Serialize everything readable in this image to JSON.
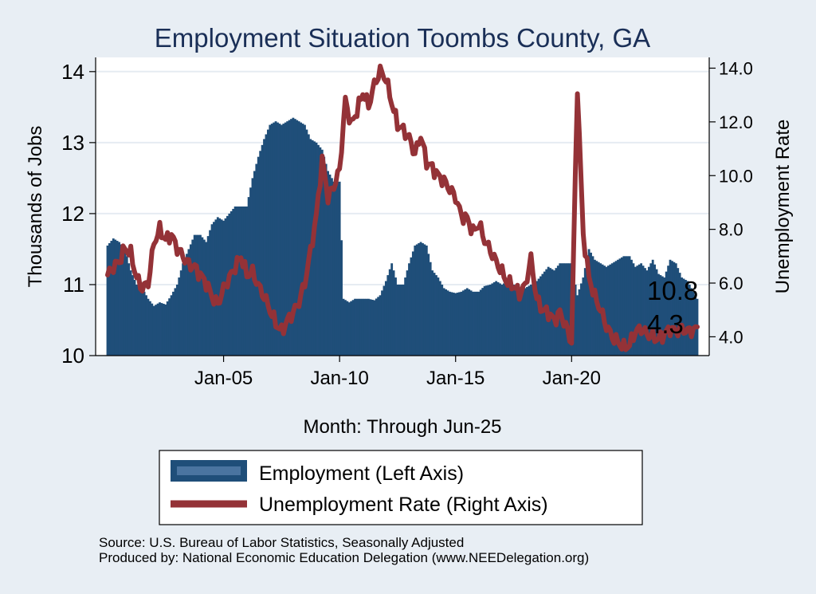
{
  "chart_data": {
    "type": "bar+line",
    "title": "Employment Situation Toombs  County, GA",
    "xlabel": "Month: Through Jun-25",
    "ylabel_left": "Thousands of Jobs",
    "ylabel_right": "Unemployment Rate",
    "x_range": [
      "Jan-00",
      "Jun-25"
    ],
    "x_ticks": [
      "Jan-05",
      "Jan-10",
      "Jan-15",
      "Jan-20"
    ],
    "y_left": {
      "min": 10,
      "max": 14.2,
      "ticks": [
        "10",
        "11",
        "12",
        "13",
        "14"
      ]
    },
    "y_right": {
      "min": 3.3,
      "max": 14.4,
      "ticks": [
        "4.0",
        "6.0",
        "8.0",
        "10.0",
        "12.0",
        "14.0"
      ]
    },
    "grid": true,
    "legend_position": "bottom",
    "series": [
      {
        "name": "Employment (Left Axis)",
        "axis": "left",
        "type": "bar",
        "color": "#1f4e79",
        "points": [
          [
            "2000-01",
            11.55
          ],
          [
            "2000-04",
            11.65
          ],
          [
            "2000-07",
            11.6
          ],
          [
            "2000-10",
            11.5
          ],
          [
            "2001-01",
            11.2
          ],
          [
            "2001-04",
            11.0
          ],
          [
            "2001-07",
            10.95
          ],
          [
            "2001-10",
            10.8
          ],
          [
            "2002-01",
            10.7
          ],
          [
            "2002-04",
            10.75
          ],
          [
            "2002-07",
            10.72
          ],
          [
            "2002-10",
            10.85
          ],
          [
            "2003-01",
            11.0
          ],
          [
            "2003-04",
            11.3
          ],
          [
            "2003-07",
            11.5
          ],
          [
            "2003-10",
            11.7
          ],
          [
            "2004-01",
            11.7
          ],
          [
            "2004-04",
            11.6
          ],
          [
            "2004-07",
            11.85
          ],
          [
            "2004-10",
            11.95
          ],
          [
            "2005-01",
            11.9
          ],
          [
            "2005-04",
            12.0
          ],
          [
            "2005-07",
            12.1
          ],
          [
            "2005-10",
            12.1
          ],
          [
            "2006-01",
            12.1
          ],
          [
            "2006-04",
            12.5
          ],
          [
            "2006-07",
            12.8
          ],
          [
            "2006-10",
            13.05
          ],
          [
            "2007-01",
            13.25
          ],
          [
            "2007-04",
            13.3
          ],
          [
            "2007-07",
            13.25
          ],
          [
            "2007-10",
            13.3
          ],
          [
            "2008-01",
            13.35
          ],
          [
            "2008-04",
            13.3
          ],
          [
            "2008-07",
            13.25
          ],
          [
            "2008-10",
            13.05
          ],
          [
            "2009-01",
            13.0
          ],
          [
            "2009-04",
            12.9
          ],
          [
            "2009-07",
            12.6
          ],
          [
            "2009-10",
            12.45
          ],
          [
            "2010-01",
            12.45
          ],
          [
            "2010-03",
            10.8
          ],
          [
            "2010-06",
            10.75
          ],
          [
            "2010-09",
            10.8
          ],
          [
            "2011-01",
            10.8
          ],
          [
            "2011-04",
            10.8
          ],
          [
            "2011-07",
            10.78
          ],
          [
            "2011-10",
            10.85
          ],
          [
            "2012-01",
            11.05
          ],
          [
            "2012-04",
            11.3
          ],
          [
            "2012-07",
            11.0
          ],
          [
            "2012-10",
            11.0
          ],
          [
            "2013-01",
            11.3
          ],
          [
            "2013-04",
            11.55
          ],
          [
            "2013-07",
            11.6
          ],
          [
            "2013-10",
            11.55
          ],
          [
            "2014-01",
            11.2
          ],
          [
            "2014-04",
            11.1
          ],
          [
            "2014-07",
            10.95
          ],
          [
            "2014-10",
            10.9
          ],
          [
            "2015-01",
            10.88
          ],
          [
            "2015-04",
            10.9
          ],
          [
            "2015-07",
            10.95
          ],
          [
            "2015-10",
            10.9
          ],
          [
            "2016-01",
            10.9
          ],
          [
            "2016-04",
            10.98
          ],
          [
            "2016-07",
            11.0
          ],
          [
            "2016-10",
            11.05
          ],
          [
            "2017-01",
            11.0
          ],
          [
            "2017-04",
            11.05
          ],
          [
            "2017-07",
            11.0
          ],
          [
            "2017-10",
            10.95
          ],
          [
            "2018-01",
            10.95
          ],
          [
            "2018-04",
            11.0
          ],
          [
            "2018-07",
            11.05
          ],
          [
            "2018-10",
            11.15
          ],
          [
            "2019-01",
            11.25
          ],
          [
            "2019-04",
            11.2
          ],
          [
            "2019-07",
            11.3
          ],
          [
            "2019-10",
            11.3
          ],
          [
            "2020-01",
            11.3
          ],
          [
            "2020-04",
            10.85
          ],
          [
            "2020-07",
            11.1
          ],
          [
            "2020-10",
            11.5
          ],
          [
            "2021-01",
            11.35
          ],
          [
            "2021-04",
            11.3
          ],
          [
            "2021-07",
            11.25
          ],
          [
            "2021-10",
            11.3
          ],
          [
            "2022-01",
            11.35
          ],
          [
            "2022-04",
            11.4
          ],
          [
            "2022-07",
            11.4
          ],
          [
            "2022-10",
            11.25
          ],
          [
            "2023-01",
            11.3
          ],
          [
            "2023-04",
            11.2
          ],
          [
            "2023-07",
            11.35
          ],
          [
            "2023-10",
            11.15
          ],
          [
            "2024-01",
            11.1
          ],
          [
            "2024-04",
            11.35
          ],
          [
            "2024-07",
            11.3
          ],
          [
            "2024-10",
            11.1
          ],
          [
            "2025-01",
            11.05
          ],
          [
            "2025-06",
            10.8
          ]
        ],
        "last_label": "10.8"
      },
      {
        "name": "Unemployment Rate (Right Axis)",
        "axis": "right",
        "type": "line",
        "color": "#943237",
        "points": [
          [
            "2000-01",
            6.3
          ],
          [
            "2000-04",
            6.6
          ],
          [
            "2000-07",
            6.8
          ],
          [
            "2000-10",
            7.3
          ],
          [
            "2001-01",
            7.1
          ],
          [
            "2001-04",
            6.2
          ],
          [
            "2001-07",
            5.8
          ],
          [
            "2001-10",
            6.0
          ],
          [
            "2002-01",
            7.5
          ],
          [
            "2002-04",
            8.0
          ],
          [
            "2002-07",
            7.6
          ],
          [
            "2002-10",
            7.8
          ],
          [
            "2003-01",
            7.3
          ],
          [
            "2003-04",
            7.0
          ],
          [
            "2003-07",
            6.7
          ],
          [
            "2003-10",
            6.6
          ],
          [
            "2004-01",
            6.3
          ],
          [
            "2004-04",
            6.0
          ],
          [
            "2004-07",
            5.5
          ],
          [
            "2004-10",
            5.2
          ],
          [
            "2005-01",
            5.8
          ],
          [
            "2005-04",
            6.2
          ],
          [
            "2005-07",
            6.6
          ],
          [
            "2005-10",
            7.0
          ],
          [
            "2006-01",
            6.3
          ],
          [
            "2006-04",
            6.4
          ],
          [
            "2006-07",
            5.9
          ],
          [
            "2006-10",
            5.5
          ],
          [
            "2007-01",
            5.0
          ],
          [
            "2007-04",
            4.5
          ],
          [
            "2007-07",
            4.2
          ],
          [
            "2007-10",
            4.6
          ],
          [
            "2008-01",
            4.9
          ],
          [
            "2008-04",
            5.3
          ],
          [
            "2008-07",
            6.0
          ],
          [
            "2008-10",
            7.2
          ],
          [
            "2009-01",
            8.5
          ],
          [
            "2009-04",
            10.6
          ],
          [
            "2009-07",
            9.2
          ],
          [
            "2009-10",
            9.6
          ],
          [
            "2010-01",
            10.2
          ],
          [
            "2010-04",
            12.8
          ],
          [
            "2010-07",
            11.9
          ],
          [
            "2010-10",
            12.4
          ],
          [
            "2011-01",
            13.1
          ],
          [
            "2011-04",
            12.6
          ],
          [
            "2011-07",
            13.4
          ],
          [
            "2011-10",
            13.9
          ],
          [
            "2012-01",
            13.6
          ],
          [
            "2012-04",
            12.7
          ],
          [
            "2012-07",
            11.9
          ],
          [
            "2012-10",
            11.7
          ],
          [
            "2013-01",
            11.4
          ],
          [
            "2013-04",
            10.8
          ],
          [
            "2013-07",
            11.5
          ],
          [
            "2013-10",
            10.5
          ],
          [
            "2014-01",
            10.3
          ],
          [
            "2014-04",
            10.0
          ],
          [
            "2014-07",
            9.8
          ],
          [
            "2014-10",
            9.5
          ],
          [
            "2015-01",
            9.2
          ],
          [
            "2015-04",
            8.5
          ],
          [
            "2015-07",
            8.4
          ],
          [
            "2015-10",
            7.9
          ],
          [
            "2016-01",
            8.2
          ],
          [
            "2016-04",
            7.6
          ],
          [
            "2016-07",
            7.2
          ],
          [
            "2016-10",
            6.8
          ],
          [
            "2017-01",
            6.4
          ],
          [
            "2017-04",
            6.0
          ],
          [
            "2017-07",
            5.9
          ],
          [
            "2017-10",
            5.6
          ],
          [
            "2018-01",
            5.9
          ],
          [
            "2018-04",
            6.9
          ],
          [
            "2018-07",
            5.4
          ],
          [
            "2018-10",
            5.0
          ],
          [
            "2019-01",
            4.9
          ],
          [
            "2019-04",
            4.6
          ],
          [
            "2019-07",
            4.9
          ],
          [
            "2019-10",
            4.4
          ],
          [
            "2020-01",
            3.8
          ],
          [
            "2020-04",
            13.3
          ],
          [
            "2020-07",
            7.8
          ],
          [
            "2020-10",
            6.2
          ],
          [
            "2021-01",
            5.5
          ],
          [
            "2021-04",
            5.0
          ],
          [
            "2021-07",
            4.4
          ],
          [
            "2021-10",
            4.0
          ],
          [
            "2022-01",
            3.8
          ],
          [
            "2022-04",
            3.6
          ],
          [
            "2022-07",
            3.7
          ],
          [
            "2022-10",
            4.2
          ],
          [
            "2023-01",
            4.3
          ],
          [
            "2023-04",
            4.1
          ],
          [
            "2023-07",
            4.0
          ],
          [
            "2023-10",
            3.9
          ],
          [
            "2024-01",
            4.1
          ],
          [
            "2024-04",
            4.3
          ],
          [
            "2024-07",
            4.2
          ],
          [
            "2024-10",
            4.3
          ],
          [
            "2025-01",
            4.2
          ],
          [
            "2025-06",
            4.3
          ]
        ],
        "last_label": "4.3"
      }
    ]
  },
  "legend": [
    {
      "label": "Employment (Left Axis)",
      "swatch": "bar",
      "color": "#1f4e79"
    },
    {
      "label": "Unemployment Rate (Right Axis)",
      "swatch": "line",
      "color": "#943237"
    }
  ],
  "footer": {
    "source": "Source: U.S. Bureau of Labor Statistics, Seasonally Adjusted",
    "producer": "Produced by: National Economic Education Delegation (www.NEEDelegation.org)"
  }
}
